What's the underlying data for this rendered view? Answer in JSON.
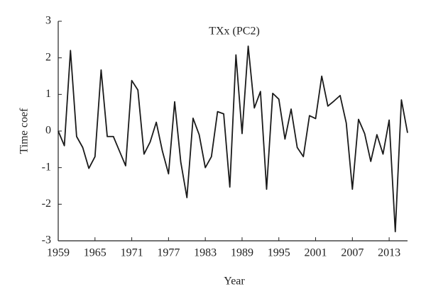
{
  "chart_data": {
    "type": "line",
    "title": "TXx (PC2)",
    "xlabel": "Year",
    "ylabel": "Time coef",
    "x": [
      1959,
      1960,
      1961,
      1962,
      1963,
      1964,
      1965,
      1966,
      1967,
      1968,
      1969,
      1970,
      1971,
      1972,
      1973,
      1974,
      1975,
      1976,
      1977,
      1978,
      1979,
      1980,
      1981,
      1982,
      1983,
      1984,
      1985,
      1986,
      1987,
      1988,
      1989,
      1990,
      1991,
      1992,
      1993,
      1994,
      1995,
      1996,
      1997,
      1998,
      1999,
      2000,
      2001,
      2002,
      2003,
      2004,
      2005,
      2006,
      2007,
      2008,
      2009,
      2010,
      2011,
      2012,
      2013,
      2014,
      2015,
      2016
    ],
    "values": [
      0.0,
      -0.4,
      2.2,
      -0.15,
      -0.45,
      -1.02,
      -0.7,
      1.67,
      -0.15,
      -0.15,
      -0.55,
      -0.95,
      1.38,
      1.12,
      -0.63,
      -0.3,
      0.24,
      -0.55,
      -1.17,
      0.8,
      -0.85,
      -1.82,
      0.35,
      -0.1,
      -1.0,
      -0.7,
      0.53,
      0.47,
      -1.53,
      2.08,
      -0.07,
      2.32,
      0.63,
      1.08,
      -1.59,
      1.03,
      0.87,
      -0.22,
      0.6,
      -0.45,
      -0.7,
      0.42,
      0.34,
      1.5,
      0.68,
      0.82,
      0.97,
      0.22,
      -1.59,
      0.32,
      -0.07,
      -0.83,
      -0.1,
      -0.63,
      0.3,
      -2.75,
      0.85,
      -0.05
    ],
    "color": "#1a1a1a",
    "xlim": [
      1959,
      2016
    ],
    "xticks": [
      1959,
      1965,
      1971,
      1977,
      1983,
      1989,
      1995,
      2001,
      2007,
      2013
    ],
    "ylim": [
      -3,
      3
    ],
    "yticks": [
      -3,
      -2,
      -1,
      0,
      1,
      2,
      3
    ]
  }
}
